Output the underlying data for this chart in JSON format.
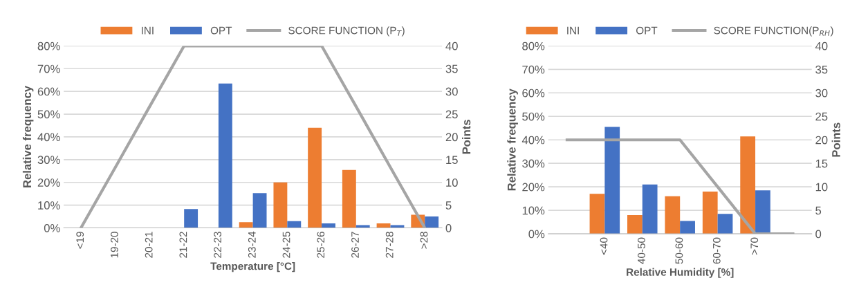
{
  "chart_data": [
    {
      "type": "bar",
      "xlabel": "Temperature [°C]",
      "ylabel": "Relative frequency",
      "y2label": "Points",
      "categories": [
        "<19",
        "19-20",
        "20-21",
        "21-22",
        "22-23",
        "23-24",
        "24-25",
        "25-26",
        "26-27",
        "27-28",
        ">28"
      ],
      "series": [
        {
          "name": "INI",
          "color": "#ed7d31",
          "values": [
            0,
            0,
            0,
            0,
            0,
            2.5,
            20,
            44,
            25.5,
            2,
            5.8
          ]
        },
        {
          "name": "OPT",
          "color": "#4472c4",
          "values": [
            0,
            0,
            0,
            8.3,
            63.5,
            15.3,
            3,
            2,
            1.2,
            1.2,
            5
          ]
        },
        {
          "name": "SCORE FUNCTION (P$_{T}$)",
          "color": "#a5a5a5",
          "type": "line",
          "axis": "y2",
          "values": [
            0,
            13.3,
            26.7,
            40,
            40,
            40,
            40,
            40,
            26.7,
            13.3,
            0
          ]
        }
      ],
      "ylim": [
        0,
        80
      ],
      "yticks": [
        {
          "value": 0,
          "label": "0%"
        },
        {
          "value": 10,
          "label": "10%"
        },
        {
          "value": 20,
          "label": "20%"
        },
        {
          "value": 30,
          "label": "30%"
        },
        {
          "value": 40,
          "label": "40%"
        },
        {
          "value": 50,
          "label": "50%"
        },
        {
          "value": 60,
          "label": "60%"
        },
        {
          "value": 70,
          "label": "70%"
        },
        {
          "value": 80,
          "label": "80%"
        }
      ],
      "y2lim": [
        0,
        40
      ],
      "y2ticks": [
        0,
        5,
        10,
        15,
        20,
        25,
        30,
        35,
        40
      ],
      "grid": "y",
      "legend": "top",
      "marker": "none",
      "line_style": "solid"
    },
    {
      "type": "bar",
      "xlabel": "Relative Humidity [%]",
      "ylabel": "Relative frequency",
      "y2label": "Points",
      "categories": [
        null,
        "<40",
        "40-50",
        "50-60",
        "60-70",
        ">70",
        null
      ],
      "series": [
        {
          "name": "INI",
          "color": "#ed7d31",
          "values": [
            null,
            17,
            8,
            16,
            18,
            41.5,
            null
          ]
        },
        {
          "name": "OPT",
          "color": "#4472c4",
          "values": [
            null,
            45.5,
            21,
            5.5,
            8.5,
            18.5,
            null
          ]
        },
        {
          "name": "SCORE FUNCTION(P$_{RH}$)",
          "color": "#a5a5a5",
          "type": "line",
          "axis": "y2",
          "values": [
            20,
            20,
            20,
            20,
            10,
            0,
            0
          ]
        }
      ],
      "ylim": [
        0,
        80
      ],
      "yticks": [
        {
          "value": 0,
          "label": "0%"
        },
        {
          "value": 10,
          "label": "10%"
        },
        {
          "value": 20,
          "label": "20%"
        },
        {
          "value": 30,
          "label": "30%"
        },
        {
          "value": 40,
          "label": "40%"
        },
        {
          "value": 50,
          "label": "50%"
        },
        {
          "value": 60,
          "label": "60%"
        },
        {
          "value": 70,
          "label": "70%"
        },
        {
          "value": 80,
          "label": "80%"
        }
      ],
      "y2lim": [
        0,
        40
      ],
      "y2ticks": [
        0,
        5,
        10,
        15,
        20,
        25,
        30,
        35,
        40
      ],
      "grid": "y",
      "legend": "top",
      "marker": "none",
      "line_style": "solid"
    }
  ]
}
